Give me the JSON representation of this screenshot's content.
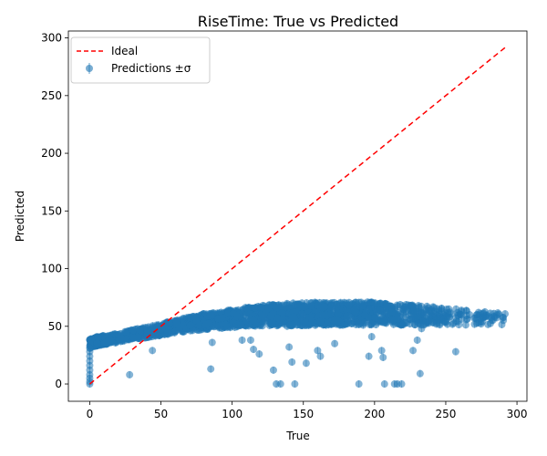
{
  "chart_data": {
    "type": "scatter",
    "title": "RiseTime: True vs Predicted",
    "xlabel": "True",
    "ylabel": "Predicted",
    "xlim": [
      -15,
      307
    ],
    "ylim": [
      -15,
      306
    ],
    "xticks": [
      0,
      50,
      100,
      150,
      200,
      250,
      300
    ],
    "yticks": [
      0,
      50,
      100,
      150,
      200,
      250,
      300
    ],
    "grid": false,
    "legend_position": "top-left",
    "series": [
      {
        "name": "Ideal",
        "kind": "line",
        "style": "dashed",
        "color": "#ff0000",
        "x": [
          0,
          292
        ],
        "y": [
          0,
          292
        ]
      },
      {
        "name": "Predictions ±σ",
        "kind": "scatter",
        "color": "#1f77b4",
        "trend": {
          "x": [
            0,
            5,
            10,
            20,
            30,
            40,
            50,
            60,
            70,
            80,
            90,
            100,
            120,
            140,
            160,
            180,
            200,
            220,
            240,
            260,
            280,
            292
          ],
          "y": [
            35,
            37,
            38,
            40,
            43,
            45,
            47,
            50,
            52,
            54,
            55,
            57,
            59,
            60,
            61,
            61,
            61,
            60,
            59,
            58,
            57,
            56
          ],
          "spread": [
            4,
            4,
            4,
            4,
            4,
            5,
            5,
            6,
            6,
            7,
            7,
            8,
            9,
            10,
            10,
            10,
            10,
            9,
            8,
            7,
            6,
            5
          ],
          "density": [
            120,
            90,
            80,
            70,
            70,
            70,
            70,
            70,
            80,
            90,
            110,
            140,
            170,
            190,
            190,
            170,
            140,
            110,
            80,
            50,
            25,
            10
          ]
        },
        "outliers": [
          {
            "x": 0,
            "y": 0
          },
          {
            "x": 0,
            "y": 2
          },
          {
            "x": 0,
            "y": 5
          },
          {
            "x": 0,
            "y": 8
          },
          {
            "x": 0,
            "y": 12
          },
          {
            "x": 0,
            "y": 16
          },
          {
            "x": 0,
            "y": 20
          },
          {
            "x": 0,
            "y": 24
          },
          {
            "x": 0,
            "y": 28
          },
          {
            "x": 0,
            "y": 31
          },
          {
            "x": 28,
            "y": 8
          },
          {
            "x": 44,
            "y": 29
          },
          {
            "x": 85,
            "y": 13
          },
          {
            "x": 86,
            "y": 36
          },
          {
            "x": 107,
            "y": 38
          },
          {
            "x": 113,
            "y": 38
          },
          {
            "x": 115,
            "y": 30
          },
          {
            "x": 119,
            "y": 26
          },
          {
            "x": 129,
            "y": 12
          },
          {
            "x": 131,
            "y": 0
          },
          {
            "x": 134,
            "y": 0
          },
          {
            "x": 140,
            "y": 32
          },
          {
            "x": 142,
            "y": 19
          },
          {
            "x": 144,
            "y": 0
          },
          {
            "x": 152,
            "y": 18
          },
          {
            "x": 160,
            "y": 29
          },
          {
            "x": 162,
            "y": 24
          },
          {
            "x": 172,
            "y": 35
          },
          {
            "x": 189,
            "y": 0
          },
          {
            "x": 196,
            "y": 24
          },
          {
            "x": 198,
            "y": 41
          },
          {
            "x": 205,
            "y": 29
          },
          {
            "x": 206,
            "y": 23
          },
          {
            "x": 207,
            "y": 0
          },
          {
            "x": 214,
            "y": 0
          },
          {
            "x": 216,
            "y": 0
          },
          {
            "x": 219,
            "y": 0
          },
          {
            "x": 227,
            "y": 29
          },
          {
            "x": 230,
            "y": 38
          },
          {
            "x": 232,
            "y": 9
          },
          {
            "x": 233,
            "y": 48
          },
          {
            "x": 257,
            "y": 28
          }
        ]
      }
    ]
  }
}
